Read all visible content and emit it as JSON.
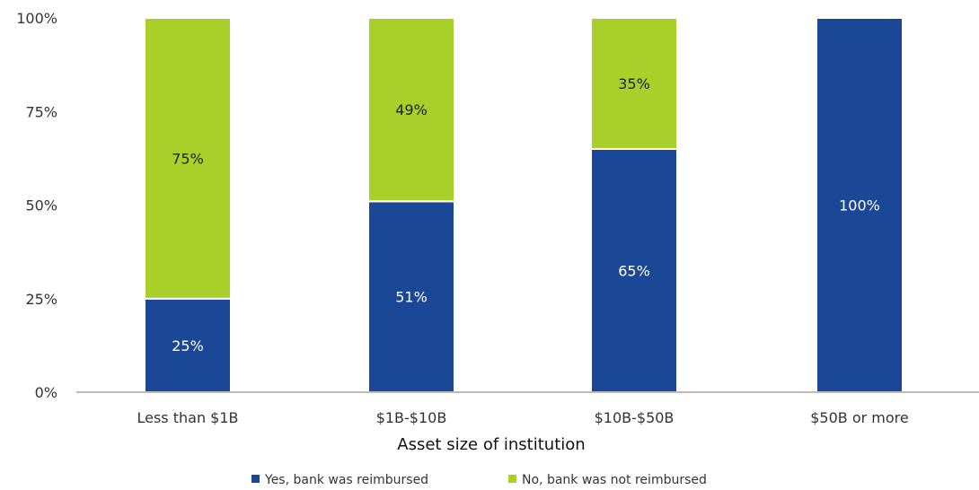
{
  "chart_data": {
    "type": "bar",
    "stacked": true,
    "categories": [
      "Less than $1B",
      "$1B-$10B",
      "$10B-$50B",
      "$50B or more"
    ],
    "series": [
      {
        "name": "Yes, bank was reimbursed",
        "values": [
          25,
          51,
          65,
          100
        ],
        "labels": [
          "25%",
          "51%",
          "65%",
          "100%"
        ],
        "color": "#1a4897"
      },
      {
        "name": "No, bank was not reimbursed",
        "values": [
          75,
          49,
          35,
          0
        ],
        "labels": [
          "75%",
          "49%",
          "35%",
          ""
        ],
        "color": "#a9cf2a"
      }
    ],
    "title": "",
    "xlabel": "Asset size of institution",
    "ylabel": "",
    "ylim": [
      0,
      100
    ],
    "yticks": [
      "0%",
      "25%",
      "50%",
      "75%",
      "100%"
    ],
    "grid": false,
    "legend_position": "bottom",
    "label_color_on_blue": "#ffffff",
    "label_color_on_green": "#222222",
    "axis_color": "#bbbbbb"
  }
}
